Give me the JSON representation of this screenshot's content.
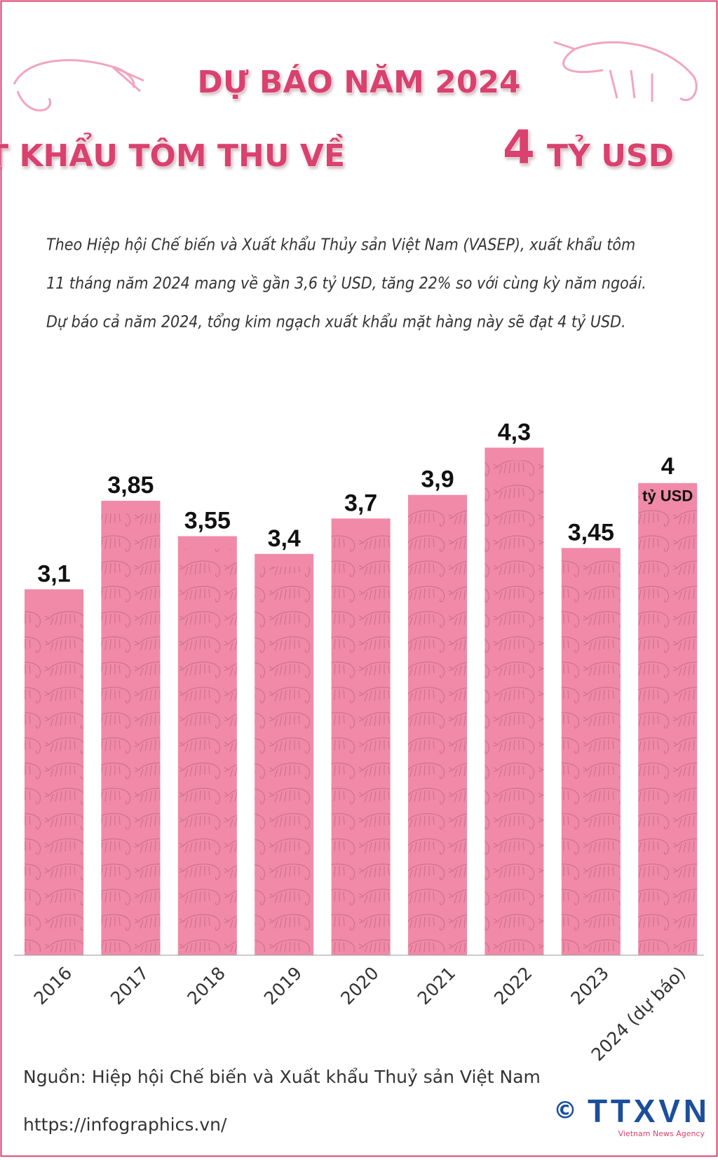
{
  "title": [
    "DỰ BÁO NĂM 2024",
    "XUẤT KHẨU TÔM THU VỀ",
    "4",
    "TỶ USD"
  ],
  "description": [
    "Theo Hiệp hội Chế biến và Xuất khẩu Thủy sản Việt Nam (VASEP), xuất khẩu tôm",
    "11 tháng năm 2024 mang về gần 3,6 tỷ USD, tăng 22% so với cùng kỳ năm ngoái.",
    "Dự báo cả năm 2024, tổng kim ngạch xuất khẩu mặt hàng này sẽ đạt 4 tỷ USD."
  ],
  "chart_data": {
    "type": "bar",
    "categories": [
      "2016",
      "2017",
      "2018",
      "2019",
      "2020",
      "2021",
      "2022",
      "2023",
      "2024 (dự báo)"
    ],
    "values": [
      3.1,
      3.85,
      3.55,
      3.4,
      3.7,
      3.9,
      4.3,
      3.45,
      4
    ],
    "value_labels": [
      "3,1",
      "3,85",
      "3,55",
      "3,4",
      "3,7",
      "3,9",
      "4,3",
      "3,45",
      "4"
    ],
    "value_unit": "tỷ USD",
    "color": "#f08aa8"
  },
  "footer": {
    "source": "Nguồn: Hiệp hội Chế biến và Xuất khẩu Thuỷ sản Việt Nam",
    "url": "https://infographics.vn/",
    "copyright": "©",
    "logo": "TTXVN",
    "logo_sub": "Vietnam News Agency"
  }
}
